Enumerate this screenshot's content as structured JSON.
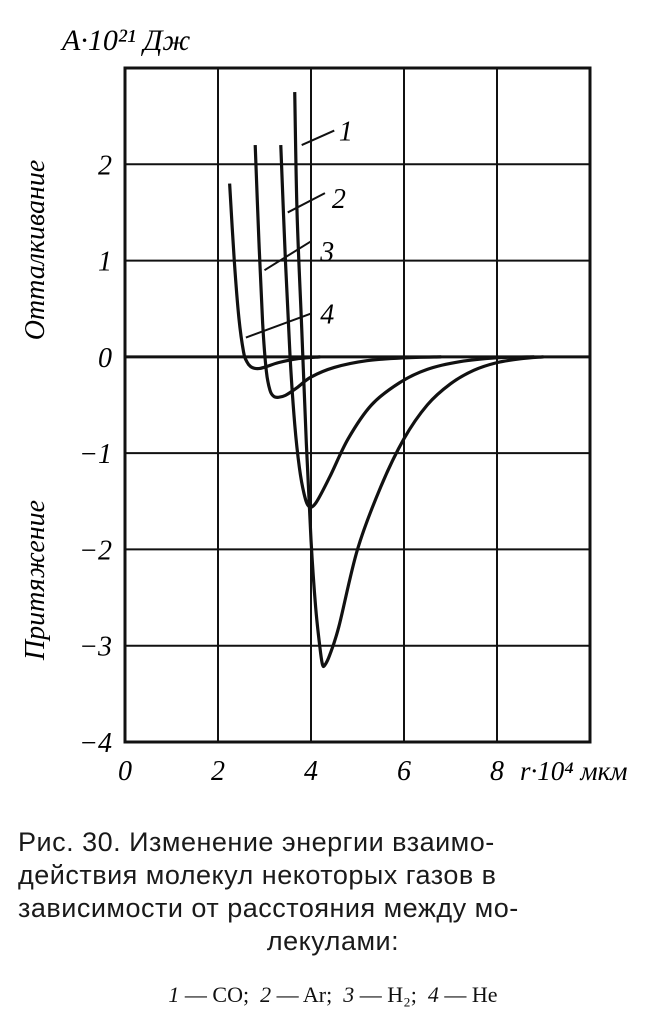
{
  "chart_data": {
    "type": "line",
    "ylabel": "A·10²¹ Дж",
    "xlabel": "r·10⁴ мкм",
    "side_label_top": "Отталкивание",
    "side_label_bottom": "Притяжение",
    "xlim": [
      0,
      10
    ],
    "ylim": [
      -4,
      3
    ],
    "x_ticks": [
      "0",
      "2",
      "4",
      "6",
      "8"
    ],
    "y_ticks": [
      "2",
      "1",
      "0",
      "−1",
      "−2",
      "−3",
      "−4"
    ],
    "grid": true,
    "series": [
      {
        "name": "1",
        "x": [
          3.65,
          3.7,
          3.8,
          3.9,
          4.0,
          4.1,
          4.2,
          4.25,
          4.3,
          4.4,
          4.6,
          5.0,
          5.5,
          6.0,
          6.5,
          7.0,
          7.5,
          8.0,
          8.5,
          9.0
        ],
        "values": [
          2.75,
          1.5,
          0.3,
          -0.9,
          -1.9,
          -2.6,
          -3.05,
          -3.2,
          -3.2,
          -3.1,
          -2.8,
          -2.0,
          -1.35,
          -0.85,
          -0.5,
          -0.28,
          -0.14,
          -0.06,
          -0.02,
          0.0
        ]
      },
      {
        "name": "2",
        "x": [
          3.35,
          3.45,
          3.55,
          3.65,
          3.75,
          3.85,
          3.95,
          4.1,
          4.4,
          4.8,
          5.3,
          5.9,
          6.5,
          7.2,
          8.0,
          8.8
        ],
        "values": [
          2.2,
          1.0,
          0.0,
          -0.7,
          -1.15,
          -1.42,
          -1.55,
          -1.52,
          -1.25,
          -0.85,
          -0.5,
          -0.27,
          -0.13,
          -0.05,
          -0.01,
          0.0
        ]
      },
      {
        "name": "3",
        "x": [
          2.8,
          2.88,
          2.96,
          3.04,
          3.12,
          3.2,
          3.3,
          3.45,
          3.7,
          4.0,
          4.5,
          5.2,
          6.0,
          6.8
        ],
        "values": [
          2.2,
          1.2,
          0.35,
          -0.15,
          -0.35,
          -0.41,
          -0.42,
          -0.4,
          -0.32,
          -0.21,
          -0.11,
          -0.04,
          -0.01,
          0.0
        ]
      },
      {
        "name": "4",
        "x": [
          2.25,
          2.35,
          2.45,
          2.55,
          2.62,
          2.7,
          2.8,
          2.9,
          3.05,
          3.3,
          3.7,
          4.2
        ],
        "values": [
          1.8,
          1.0,
          0.4,
          0.05,
          -0.05,
          -0.1,
          -0.12,
          -0.12,
          -0.1,
          -0.06,
          -0.02,
          0.0
        ]
      }
    ],
    "curve_labels": [
      "1",
      "2",
      "3",
      "4"
    ]
  },
  "caption": {
    "lines": [
      "Рис. 30. Изменение  энергии взаимо-",
      "действия молекул некоторых газов в",
      "зависимости от расстояния между мо-",
      "лекулами:"
    ],
    "legend": [
      {
        "num": "1",
        "formula": "CO"
      },
      {
        "num": "2",
        "formula": "Ar"
      },
      {
        "num": "3",
        "formula": "H₂"
      },
      {
        "num": "4",
        "formula": "He"
      }
    ]
  }
}
